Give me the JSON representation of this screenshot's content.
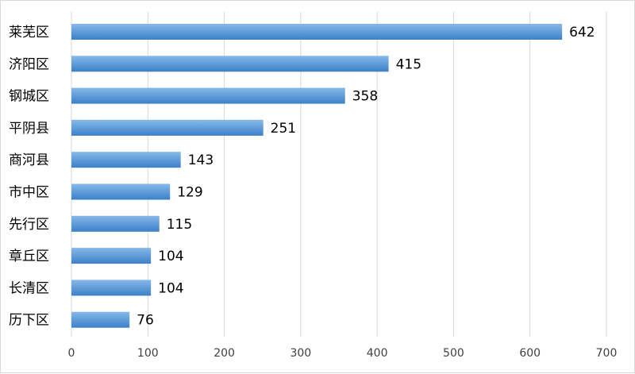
{
  "chart_data": {
    "type": "bar",
    "orientation": "horizontal",
    "title": "",
    "xlabel": "",
    "ylabel": "",
    "categories": [
      "莱芜区",
      "济阳区",
      "钢城区",
      "平阴县",
      "商河县",
      "市中区",
      "先行区",
      "章丘区",
      "长清区",
      "历下区"
    ],
    "series": [
      {
        "values": [
          642,
          415,
          358,
          251,
          143,
          129,
          115,
          104,
          104,
          76
        ]
      }
    ],
    "xlim": [
      0,
      700
    ],
    "ticks": [
      0,
      100,
      200,
      300,
      400,
      500,
      600,
      700
    ],
    "tick_labels": [
      "0",
      "100",
      "200",
      "300",
      "400",
      "500",
      "600",
      "700"
    ],
    "grid": true,
    "legend": "none",
    "data_labels": true,
    "colors": {
      "bar_light": "#86b9e9",
      "bar_dark": "#3c80c8",
      "grid": "#d9d9d9"
    }
  }
}
